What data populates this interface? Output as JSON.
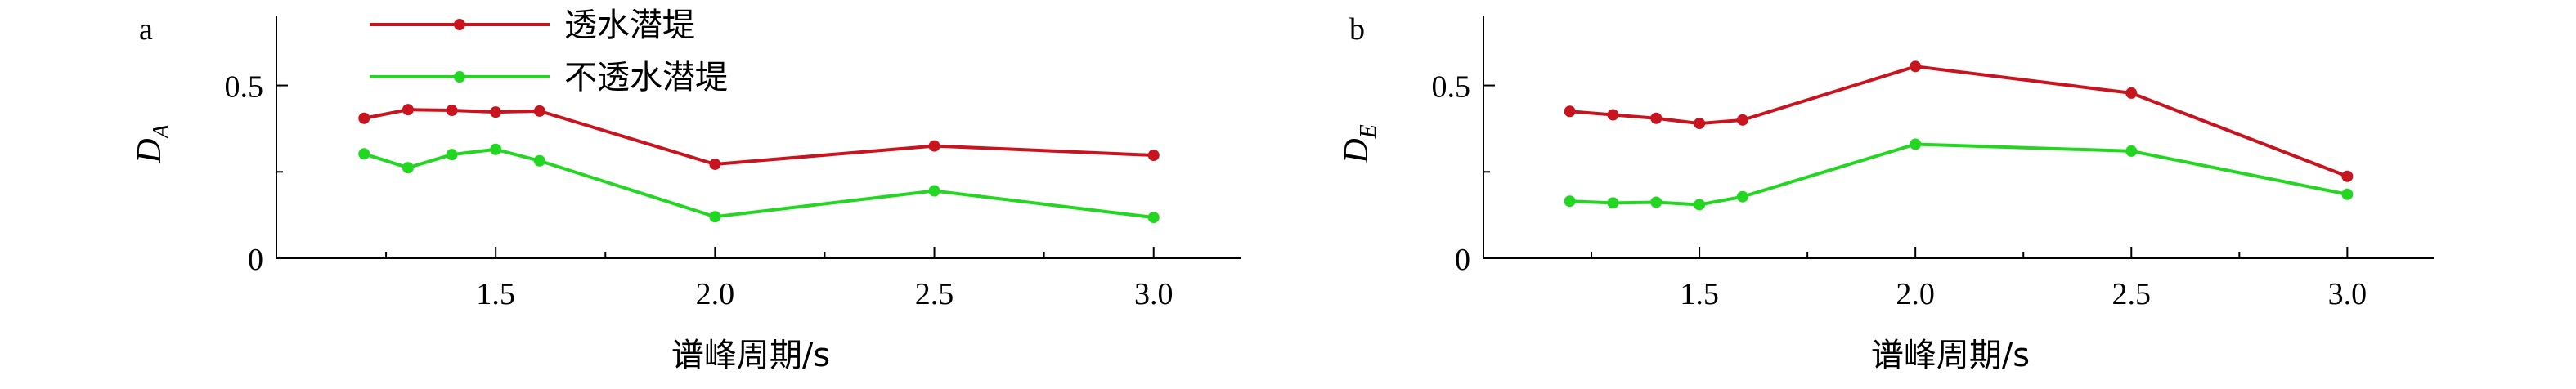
{
  "colors": {
    "series_red": "#c8141e",
    "series_green": "#22d622",
    "axis": "#000000"
  },
  "xlabel": "谱峰周期/s",
  "legend": [
    "透水潜堤",
    "不透水潜堤"
  ],
  "chart_data": [
    {
      "type": "line",
      "panel": "a",
      "ylabel_main": "D",
      "ylabel_sub": "A",
      "xlabel": "谱峰周期/s",
      "xlim": [
        1.0,
        3.2
      ],
      "ylim": [
        0,
        0.7
      ],
      "xticks": [
        1.5,
        2.0,
        2.5,
        3.0
      ],
      "xticklabels": [
        "1.5",
        "2.0",
        "2.5",
        "3.0"
      ],
      "yticks": [
        0,
        0.5
      ],
      "yticklabels": [
        "0",
        "0.5"
      ],
      "grid": false,
      "legend_position": "top-left",
      "series": [
        {
          "name": "透水潜堤",
          "color": "#c8141e",
          "x": [
            1.2,
            1.3,
            1.4,
            1.5,
            1.6,
            2.0,
            2.5,
            3.0
          ],
          "y": [
            0.405,
            0.43,
            0.428,
            0.423,
            0.426,
            0.272,
            0.325,
            0.298
          ]
        },
        {
          "name": "不透水潜堤",
          "color": "#22d622",
          "x": [
            1.2,
            1.3,
            1.4,
            1.5,
            1.6,
            2.0,
            2.5,
            3.0
          ],
          "y": [
            0.302,
            0.262,
            0.3,
            0.315,
            0.282,
            0.12,
            0.195,
            0.118
          ]
        }
      ]
    },
    {
      "type": "line",
      "panel": "b",
      "ylabel_main": "D",
      "ylabel_sub": "E",
      "xlabel": "谱峰周期/s",
      "xlim": [
        1.0,
        3.2
      ],
      "ylim": [
        0,
        0.7
      ],
      "xticks": [
        1.5,
        2.0,
        2.5,
        3.0
      ],
      "xticklabels": [
        "1.5",
        "2.0",
        "2.5",
        "3.0"
      ],
      "yticks": [
        0,
        0.5
      ],
      "yticklabels": [
        "0",
        "0.5"
      ],
      "grid": false,
      "series": [
        {
          "name": "透水潜堤",
          "color": "#c8141e",
          "x": [
            1.2,
            1.3,
            1.4,
            1.5,
            1.6,
            2.0,
            2.5,
            3.0
          ],
          "y": [
            0.425,
            0.415,
            0.405,
            0.39,
            0.4,
            0.555,
            0.478,
            0.237
          ]
        },
        {
          "name": "不透水潜堤",
          "color": "#22d622",
          "x": [
            1.2,
            1.3,
            1.4,
            1.5,
            1.6,
            2.0,
            2.5,
            3.0
          ],
          "y": [
            0.165,
            0.16,
            0.162,
            0.155,
            0.178,
            0.33,
            0.31,
            0.185
          ]
        }
      ]
    }
  ]
}
